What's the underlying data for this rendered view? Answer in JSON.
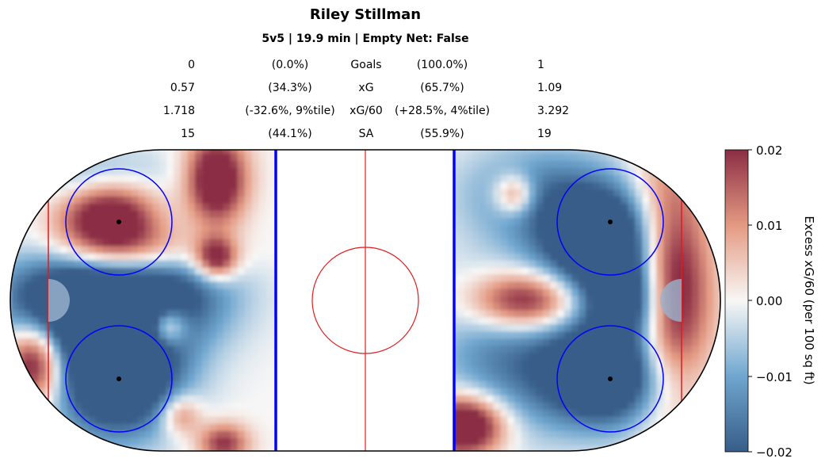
{
  "header": {
    "title": "Riley Stillman",
    "subtitle": "5v5 | 19.9 min | Empty Net: False"
  },
  "stats": [
    {
      "left_value": "0",
      "left_pct": "(0.0%)",
      "label": "Goals",
      "right_pct": "(100.0%)",
      "right_value": "1"
    },
    {
      "left_value": "0.57",
      "left_pct": "(34.3%)",
      "label": "xG",
      "right_pct": "(65.7%)",
      "right_value": "1.09"
    },
    {
      "left_value": "1.718",
      "left_pct": "(-32.6%, 9%tile)",
      "label": "xG/60",
      "right_pct": "(+28.5%, 4%tile)",
      "right_value": "3.292"
    },
    {
      "left_value": "15",
      "left_pct": "(44.1%)",
      "label": "SA",
      "right_pct": "(55.9%)",
      "right_value": "19"
    }
  ],
  "colors": {
    "red_high": "#8B2D45",
    "red_mid": "#E49A82",
    "neutral": "#F8F7F6",
    "blue_mid": "#6FA6CF",
    "blue_low": "#375D88",
    "rink_line_red": "#E41A1C",
    "blue_line": "#0000FF",
    "boards": "#000000"
  },
  "chart_data": {
    "type": "heatmap",
    "title": "Riley Stillman",
    "subtitle": "5v5 | 19.9 min | Empty Net: False",
    "description_units": "rink feet; x from -100 to 100, y from -42.5 to 42.5",
    "xlim": [
      -100,
      100
    ],
    "ylim": [
      -42.5,
      42.5
    ],
    "colorbar": {
      "label": "Excess xG/60 (per 100 sq ft)",
      "range": [
        -0.02,
        0.02
      ],
      "ticks": [
        "0.02",
        "0.01",
        "0.00",
        "−0.01",
        "−0.02"
      ]
    },
    "blobs": [
      {
        "side": "left",
        "x": -72,
        "y": 24,
        "sx": 10,
        "sy": 8,
        "value": 0.03
      },
      {
        "side": "left",
        "x": -62,
        "y": 14,
        "sx": 16,
        "sy": 6,
        "value": 0.02
      },
      {
        "side": "left",
        "x": -42,
        "y": 34,
        "sx": 6,
        "sy": 9,
        "value": 0.03
      },
      {
        "side": "left",
        "x": -42,
        "y": 12,
        "sx": 4,
        "sy": 4,
        "value": 0.025
      },
      {
        "side": "left",
        "x": -93,
        "y": -17,
        "sx": 6,
        "sy": 8,
        "value": 0.03
      },
      {
        "side": "left",
        "x": -56,
        "y": -7,
        "sx": 4,
        "sy": 4,
        "value": 0.025
      },
      {
        "side": "left",
        "x": -52,
        "y": -32,
        "sx": 4,
        "sy": 4,
        "value": 0.015
      },
      {
        "side": "left",
        "x": -40,
        "y": -40,
        "sx": 5,
        "sy": 4,
        "value": 0.02
      },
      {
        "side": "left",
        "x": -80,
        "y": 0,
        "sx": 16,
        "sy": 10,
        "value": -0.035
      },
      {
        "side": "left",
        "x": -70,
        "y": -20,
        "sx": 12,
        "sy": 12,
        "value": -0.04
      },
      {
        "side": "left",
        "x": -55,
        "y": 5,
        "sx": 14,
        "sy": 12,
        "value": -0.02
      },
      {
        "side": "left",
        "x": -75,
        "y": 35,
        "sx": 14,
        "sy": 6,
        "value": -0.012
      },
      {
        "side": "right",
        "x": 85,
        "y": 5,
        "sx": 8,
        "sy": 22,
        "value": 0.035
      },
      {
        "side": "right",
        "x": 45,
        "y": 0,
        "sx": 11,
        "sy": 6,
        "value": 0.03
      },
      {
        "side": "right",
        "x": 42,
        "y": 30,
        "sx": 4,
        "sy": 4,
        "value": 0.02
      },
      {
        "side": "right",
        "x": 28,
        "y": -35,
        "sx": 8,
        "sy": 6,
        "value": 0.035
      },
      {
        "side": "right",
        "x": 68,
        "y": 16,
        "sx": 12,
        "sy": 10,
        "value": -0.04
      },
      {
        "side": "right",
        "x": 68,
        "y": -20,
        "sx": 12,
        "sy": 10,
        "value": -0.04
      },
      {
        "side": "right",
        "x": 50,
        "y": 30,
        "sx": 16,
        "sy": 10,
        "value": -0.015
      },
      {
        "side": "right",
        "x": 40,
        "y": -15,
        "sx": 14,
        "sy": 16,
        "value": -0.015
      },
      {
        "side": "right",
        "x": 75,
        "y": 0,
        "sx": 8,
        "sy": 8,
        "value": -0.03
      }
    ]
  }
}
